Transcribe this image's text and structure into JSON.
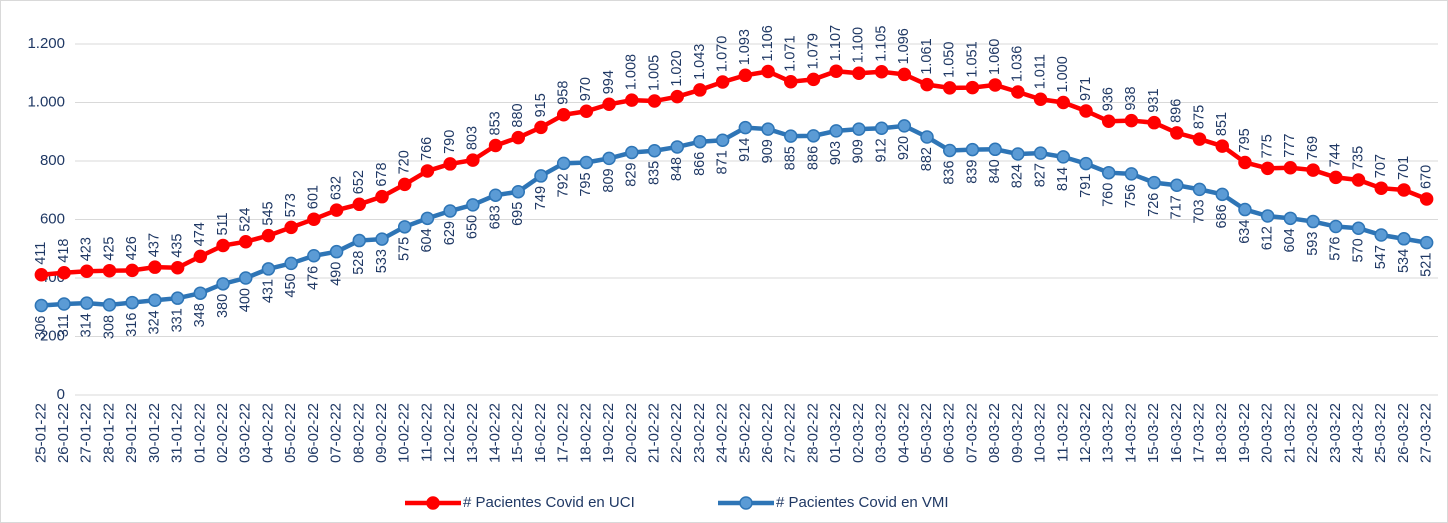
{
  "chart_data": {
    "type": "line",
    "categories": [
      "25-01-22",
      "26-01-22",
      "27-01-22",
      "28-01-22",
      "29-01-22",
      "30-01-22",
      "31-01-22",
      "01-02-22",
      "02-02-22",
      "03-02-22",
      "04-02-22",
      "05-02-22",
      "06-02-22",
      "07-02-22",
      "08-02-22",
      "09-02-22",
      "10-02-22",
      "11-02-22",
      "12-02-22",
      "13-02-22",
      "14-02-22",
      "15-02-22",
      "16-02-22",
      "17-02-22",
      "18-02-22",
      "19-02-22",
      "20-02-22",
      "21-02-22",
      "22-02-22",
      "23-02-22",
      "24-02-22",
      "25-02-22",
      "26-02-22",
      "27-02-22",
      "28-02-22",
      "01-03-22",
      "02-03-22",
      "03-03-22",
      "04-03-22",
      "05-03-22",
      "06-03-22",
      "07-03-22",
      "08-03-22",
      "09-03-22",
      "10-03-22",
      "11-03-22",
      "12-03-22",
      "13-03-22",
      "14-03-22",
      "15-03-22",
      "16-03-22",
      "17-03-22",
      "18-03-22",
      "19-03-22",
      "20-03-22",
      "21-03-22",
      "22-03-22",
      "23-03-22",
      "24-03-22",
      "25-03-22",
      "26-03-22",
      "27-03-22"
    ],
    "series": [
      {
        "name": "# Pacientes Covid en UCI",
        "color": "#ff0000",
        "label_position": "above",
        "values": [
          411,
          418,
          423,
          425,
          426,
          437,
          435,
          474,
          511,
          524,
          545,
          573,
          601,
          632,
          652,
          678,
          720,
          766,
          790,
          803,
          853,
          880,
          915,
          958,
          970,
          994,
          1008,
          1005,
          1020,
          1043,
          1070,
          1093,
          1106,
          1071,
          1079,
          1107,
          1100,
          1105,
          1096,
          1061,
          1050,
          1051,
          1060,
          1036,
          1011,
          1000,
          971,
          936,
          938,
          931,
          896,
          875,
          851,
          795,
          775,
          777,
          769,
          744,
          735,
          707,
          701,
          670
        ],
        "value_labels": [
          "411",
          "418",
          "423",
          "425",
          "426",
          "437",
          "435",
          "474",
          "511",
          "524",
          "545",
          "573",
          "601",
          "632",
          "652",
          "678",
          "720",
          "766",
          "790",
          "803",
          "853",
          "880",
          "915",
          "958",
          "970",
          "994",
          "1.008",
          "1.005",
          "1.020",
          "1.043",
          "1.070",
          "1.093",
          "1.106",
          "1.071",
          "1.079",
          "1.107",
          "1.100",
          "1.105",
          "1.096",
          "1.061",
          "1.050",
          "1.051",
          "1.060",
          "1.036",
          "1.011",
          "1.000",
          "971",
          "936",
          "938",
          "931",
          "896",
          "875",
          "851",
          "795",
          "775",
          "777",
          "769",
          "744",
          "735",
          "707",
          "701",
          "670"
        ]
      },
      {
        "name": "# Pacientes Covid en VMI",
        "color": "#2e75b6",
        "label_position": "below",
        "values": [
          306,
          311,
          314,
          308,
          316,
          324,
          331,
          348,
          380,
          400,
          431,
          450,
          476,
          490,
          528,
          533,
          575,
          604,
          629,
          650,
          683,
          695,
          749,
          792,
          795,
          809,
          829,
          835,
          848,
          866,
          871,
          914,
          909,
          885,
          886,
          903,
          909,
          912,
          920,
          882,
          836,
          839,
          840,
          824,
          827,
          814,
          791,
          760,
          756,
          726,
          717,
          703,
          686,
          634,
          612,
          604,
          593,
          576,
          570,
          547,
          534,
          521
        ]
      }
    ],
    "ylim": [
      0,
      1200
    ],
    "yticks": [
      0,
      200,
      400,
      600,
      800,
      {
        "value": 1000,
        "label": "1.000"
      },
      {
        "value": 1200,
        "label": "1.200"
      }
    ],
    "grid": true,
    "legend": "bottom"
  }
}
